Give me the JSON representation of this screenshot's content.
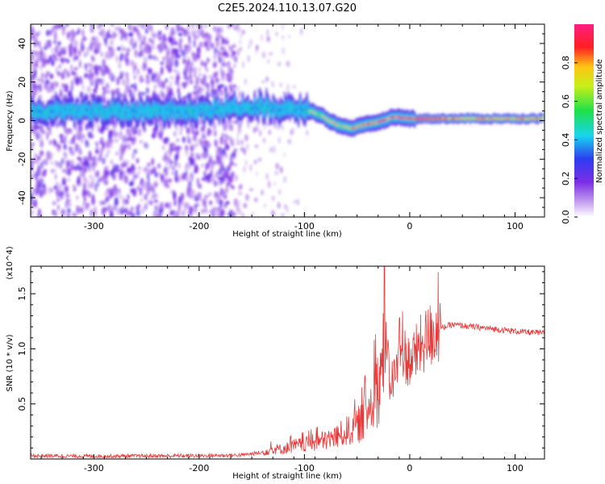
{
  "page_title": "C2E5.2024.110.13.07.G20",
  "colors": {
    "snr_line": "#e83a3a",
    "axis": "#000000"
  },
  "chart_data": [
    {
      "type": "heatmap",
      "xlabel": "Height of straight line (km)",
      "ylabel": "Frequency (Hz)",
      "xlim": [
        -360,
        128
      ],
      "ylim": [
        -50,
        50
      ],
      "x_ticks": [
        -300,
        -200,
        -100,
        0,
        100
      ],
      "y_ticks": [
        -40,
        -20,
        0,
        20,
        40
      ],
      "colorbar": {
        "label": "Normalized spectral amplitude",
        "range": [
          0,
          1
        ],
        "ticks": [
          "0.0",
          "0.2",
          "0.4",
          "0.6",
          "0.8"
        ],
        "colormap": "rainbow"
      },
      "ridge": [
        {
          "x": -310,
          "y": 5,
          "amp": 0.35
        },
        {
          "x": -250,
          "y": 5,
          "amp": 0.33
        },
        {
          "x": -210,
          "y": 5,
          "amp": 0.35
        },
        {
          "x": -160,
          "y": 7,
          "amp": 0.45
        },
        {
          "x": -140,
          "y": 7,
          "amp": 0.55
        },
        {
          "x": -120,
          "y": 6,
          "amp": 0.65
        },
        {
          "x": -100,
          "y": 6,
          "amp": 0.65
        },
        {
          "x": -85,
          "y": 3,
          "amp": 0.7
        },
        {
          "x": -70,
          "y": -2,
          "amp": 0.75
        },
        {
          "x": -55,
          "y": -4,
          "amp": 0.8
        },
        {
          "x": -40,
          "y": -2,
          "amp": 0.85
        },
        {
          "x": -25,
          "y": 0,
          "amp": 0.9
        },
        {
          "x": -15,
          "y": 2,
          "amp": 0.9
        },
        {
          "x": 0,
          "y": 1,
          "amp": 0.95
        },
        {
          "x": 20,
          "y": 1,
          "amp": 0.9
        },
        {
          "x": 60,
          "y": 1,
          "amp": 0.8
        },
        {
          "x": 100,
          "y": 1,
          "amp": 0.85
        },
        {
          "x": 128,
          "y": 1,
          "amp": 0.8
        }
      ]
    },
    {
      "type": "line",
      "xlabel": "Height of straight line (km)",
      "ylabel": "SNR (10 * v/v)",
      "y_multiplier": "(x10^4)",
      "xlim": [
        -360,
        128
      ],
      "ylim": [
        0,
        17500
      ],
      "x_ticks": [
        -300,
        -200,
        -100,
        0,
        100
      ],
      "y_ticks": [
        5000,
        10000,
        15000
      ],
      "y_tick_labels": [
        "0.5",
        "1.0",
        "1.5"
      ],
      "series": [
        {
          "x": [
            -360,
            -300,
            -200,
            -160,
            -140,
            -130,
            -120,
            -110,
            -100,
            -90,
            -80,
            -70,
            -60,
            -50,
            -45,
            -40,
            -35,
            -30,
            -27,
            -25,
            -22,
            -20,
            -15,
            -10,
            -5,
            0,
            10,
            20,
            30,
            40,
            60,
            80,
            100,
            128
          ],
          "values": [
            300,
            250,
            300,
            350,
            600,
            900,
            900,
            1200,
            1300,
            1500,
            1700,
            2000,
            2500,
            3000,
            3500,
            4500,
            5500,
            6500,
            8000,
            9000,
            8500,
            6500,
            7500,
            8800,
            9500,
            8800,
            10200,
            11300,
            11900,
            12200,
            12000,
            11800,
            11600,
            11400
          ]
        }
      ]
    }
  ]
}
